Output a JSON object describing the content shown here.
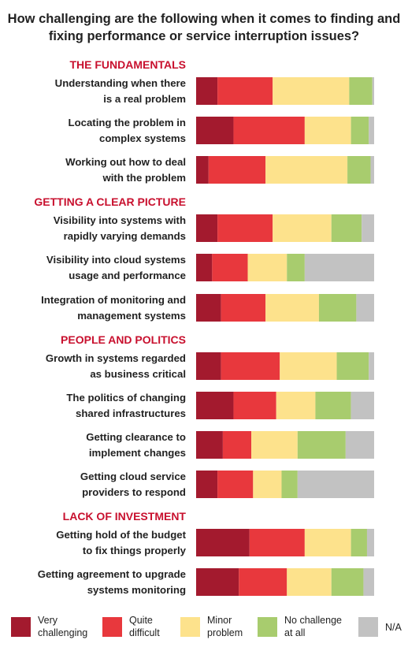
{
  "chart_data": {
    "type": "bar",
    "stacked": true,
    "orientation": "horizontal",
    "normalized": "percent",
    "title": "How challenging are the following when it comes to finding and fixing performance or service interruption issues?",
    "xlim": [
      0,
      100
    ],
    "grid": false,
    "legend_position": "bottom",
    "groups": [
      {
        "label": "THE FUNDAMENTALS",
        "categories": [
          0,
          1,
          2
        ]
      },
      {
        "label": "GETTING A CLEAR PICTURE",
        "categories": [
          3,
          4,
          5
        ]
      },
      {
        "label": "PEOPLE AND POLITICS",
        "categories": [
          6,
          7,
          8,
          9
        ]
      },
      {
        "label": "LACK OF INVESTMENT",
        "categories": [
          10,
          11
        ]
      }
    ],
    "categories": [
      "Understanding when there is a real problem",
      "Locating the problem in complex systems",
      "Working out how to deal with the problem",
      "Visibility into systems with rapidly varying demands",
      "Visibility into cloud systems usage and performance",
      "Integration of monitoring and management systems",
      "Growth in systems regarded as  business critical",
      "The politics of changing shared infrastructures",
      "Getting clearance to implement changes",
      "Getting cloud service providers to respond",
      "Getting hold of the budget to fix things properly",
      "Getting agreement to upgrade systems monitoring"
    ],
    "category_lines": [
      [
        "Understanding when there",
        "is a real problem"
      ],
      [
        "Locating the problem in",
        "complex systems"
      ],
      [
        "Working out how to deal",
        "with the problem"
      ],
      [
        "Visibility into systems with",
        "rapidly varying demands"
      ],
      [
        "Visibility into cloud systems",
        "usage and performance"
      ],
      [
        "Integration of monitoring and",
        "management systems"
      ],
      [
        "Growth in systems regarded",
        "as  business critical"
      ],
      [
        "The politics of changing",
        "shared infrastructures"
      ],
      [
        "Getting clearance to",
        "implement changes"
      ],
      [
        "Getting cloud service",
        "providers to respond"
      ],
      [
        "Getting hold of the budget",
        "to fix things properly"
      ],
      [
        "Getting agreement to upgrade",
        "systems monitoring"
      ]
    ],
    "series": [
      {
        "name": "Very challenging",
        "name_lines": [
          "Very",
          "challenging"
        ],
        "color": "#a31a2e",
        "values": [
          12,
          21,
          7,
          12,
          9,
          14,
          14,
          21,
          15,
          12,
          30,
          24
        ]
      },
      {
        "name": "Quite difficult",
        "name_lines": [
          "Quite",
          "difficult"
        ],
        "color": "#e8383d",
        "values": [
          31,
          40,
          32,
          31,
          20,
          25,
          33,
          24,
          16,
          20,
          31,
          27
        ]
      },
      {
        "name": "Minor problem",
        "name_lines": [
          "Minor",
          "problem"
        ],
        "color": "#fde28c",
        "values": [
          43,
          26,
          46,
          33,
          22,
          30,
          32,
          22,
          26,
          16,
          26,
          25
        ]
      },
      {
        "name": "No challenge at all",
        "name_lines": [
          "No challenge",
          "at all"
        ],
        "color": "#a8cc6e",
        "values": [
          13,
          10,
          13,
          17,
          10,
          21,
          18,
          20,
          27,
          9,
          9,
          18
        ]
      },
      {
        "name": "N/A",
        "name_lines": [
          "N/A"
        ],
        "color": "#c2c2c2",
        "values": [
          1,
          3,
          2,
          7,
          39,
          10,
          3,
          13,
          16,
          43,
          4,
          6
        ]
      }
    ]
  }
}
